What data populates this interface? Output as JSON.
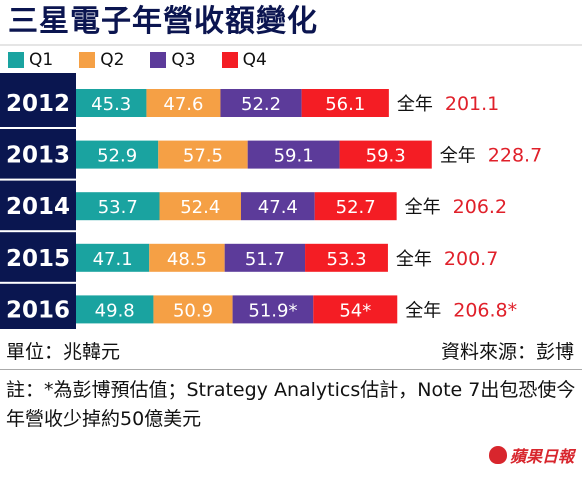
{
  "title": "三星電子年營收額變化",
  "legend": [
    {
      "label": "Q1",
      "color": "#1aa3a0"
    },
    {
      "label": "Q2",
      "color": "#f5a045"
    },
    {
      "label": "Q3",
      "color": "#5c3b9a"
    },
    {
      "label": "Q4",
      "color": "#f41d24"
    }
  ],
  "chart_data": {
    "type": "bar",
    "stacked": true,
    "orientation": "horizontal",
    "categories": [
      "2012",
      "2013",
      "2014",
      "2015",
      "2016"
    ],
    "series": [
      {
        "name": "Q1",
        "values": [
          45.3,
          52.9,
          53.7,
          47.1,
          49.8
        ],
        "labels": [
          "45.3",
          "52.9",
          "53.7",
          "47.1",
          "49.8"
        ]
      },
      {
        "name": "Q2",
        "values": [
          47.6,
          57.5,
          52.4,
          48.5,
          50.9
        ],
        "labels": [
          "47.6",
          "57.5",
          "52.4",
          "48.5",
          "50.9"
        ]
      },
      {
        "name": "Q3",
        "values": [
          52.2,
          59.1,
          47.4,
          51.7,
          51.9
        ],
        "labels": [
          "52.2",
          "59.1",
          "47.4",
          "51.7",
          "51.9*"
        ]
      },
      {
        "name": "Q4",
        "values": [
          56.1,
          59.3,
          52.7,
          53.3,
          54
        ],
        "labels": [
          "56.1",
          "59.3",
          "52.7",
          "53.3",
          "54*"
        ]
      }
    ],
    "totals_prefix": "全年",
    "totals": [
      "201.1",
      "228.7",
      "206.2",
      "200.7",
      "206.8*"
    ],
    "legend_position": "top-left",
    "grid": false
  },
  "unit": "單位：兆韓元",
  "source": "資料來源：彭博",
  "note": "註：*為彭博預估值；Strategy Analytics估計，Note 7出包恐使今年營收少掉約50億美元",
  "logo": "蘋果日報"
}
